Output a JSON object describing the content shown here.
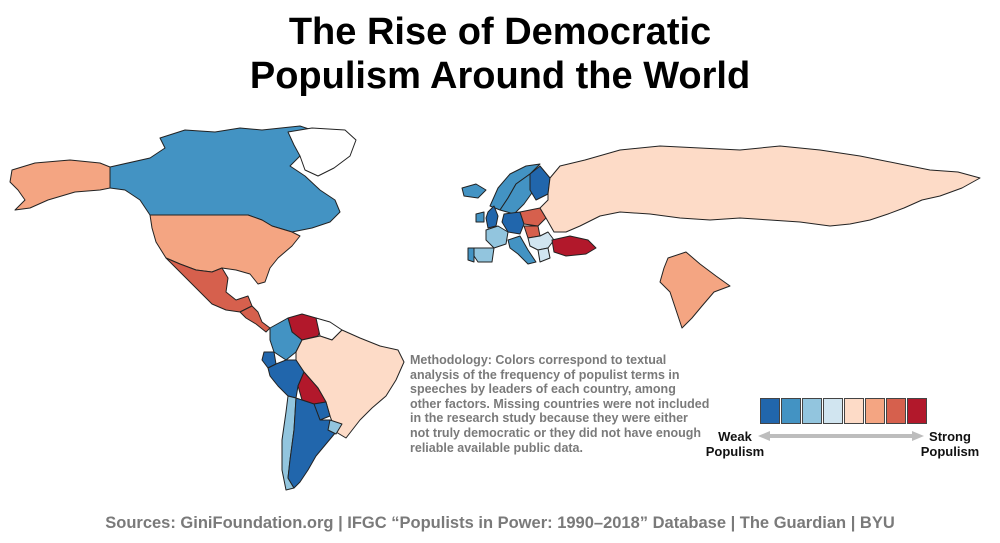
{
  "title": {
    "line1": "The Rise of Democratic",
    "line2": "Populism Around the World"
  },
  "methodology": "Methodology: Colors correspond to textual analysis of the frequency of populist terms in speeches by leaders of each country, among other factors. Missing countries were not included in the research study because they were either not truly democratic or they did not have enough reliable available public data.",
  "legend": {
    "left_label": "Weak Populism",
    "right_label": "Strong Populism",
    "colors": [
      "#2166ac",
      "#4393c3",
      "#92c5de",
      "#d1e5f0",
      "#fddbc7",
      "#f4a582",
      "#d6604d",
      "#b2182b"
    ]
  },
  "sources": "Sources: GiniFoundation.org  |  IFGC “Populists in Power: 1990–2018” Database  |  The Guardian  |  BYU",
  "regions": [
    {
      "name": "canada",
      "color": "#4393c3"
    },
    {
      "name": "alaska",
      "color": "#f4a582"
    },
    {
      "name": "greenland",
      "color": "#ffffff"
    },
    {
      "name": "usa",
      "color": "#f4a582"
    },
    {
      "name": "mexico",
      "color": "#d6604d"
    },
    {
      "name": "central-america",
      "color": "#d6604d"
    },
    {
      "name": "colombia",
      "color": "#4393c3"
    },
    {
      "name": "venezuela",
      "color": "#b2182b"
    },
    {
      "name": "guianas",
      "color": "#ffffff"
    },
    {
      "name": "ecuador",
      "color": "#2166ac"
    },
    {
      "name": "peru",
      "color": "#2166ac"
    },
    {
      "name": "brazil",
      "color": "#fddbc7"
    },
    {
      "name": "bolivia",
      "color": "#b2182b"
    },
    {
      "name": "paraguay",
      "color": "#2166ac"
    },
    {
      "name": "chile",
      "color": "#92c5de"
    },
    {
      "name": "argentina",
      "color": "#2166ac"
    },
    {
      "name": "uruguay",
      "color": "#92c5de"
    },
    {
      "name": "iceland",
      "color": "#4393c3"
    },
    {
      "name": "norway",
      "color": "#4393c3"
    },
    {
      "name": "sweden",
      "color": "#4393c3"
    },
    {
      "name": "finland",
      "color": "#2166ac"
    },
    {
      "name": "united-kingdom",
      "color": "#2166ac"
    },
    {
      "name": "ireland",
      "color": "#4393c3"
    },
    {
      "name": "france",
      "color": "#92c5de"
    },
    {
      "name": "spain",
      "color": "#92c5de"
    },
    {
      "name": "portugal",
      "color": "#4393c3"
    },
    {
      "name": "germany",
      "color": "#2166ac"
    },
    {
      "name": "poland",
      "color": "#d6604d"
    },
    {
      "name": "italy",
      "color": "#4393c3"
    },
    {
      "name": "hungary",
      "color": "#d6604d"
    },
    {
      "name": "balkans",
      "color": "#d1e5f0"
    },
    {
      "name": "greece",
      "color": "#d1e5f0"
    },
    {
      "name": "turkey",
      "color": "#b2182b"
    },
    {
      "name": "russia",
      "color": "#fddbc7"
    },
    {
      "name": "india",
      "color": "#f4a582"
    }
  ]
}
